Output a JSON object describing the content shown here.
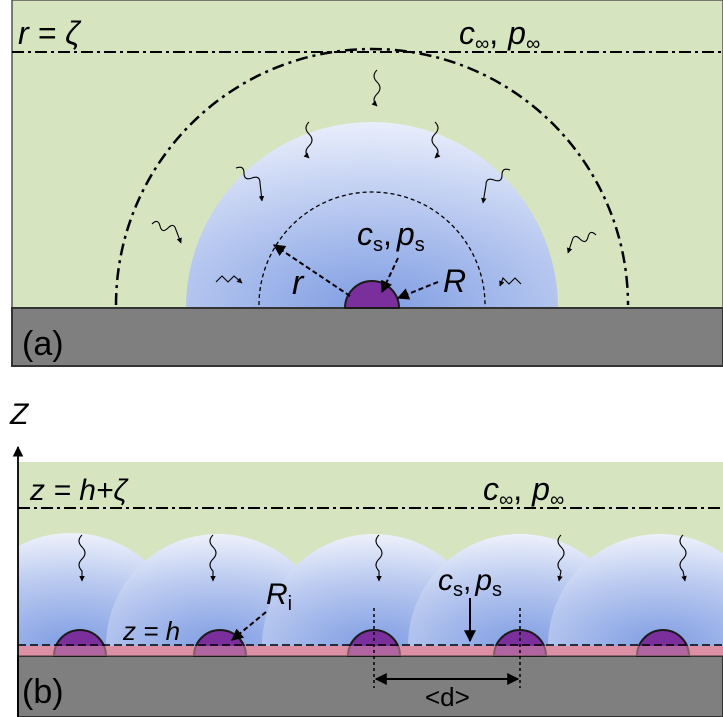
{
  "panel_a": {
    "label": "(a)",
    "boundary_label": "r = ζ",
    "far_field": {
      "c": "c",
      "c_sub": "∞",
      "sep": ",",
      "p": "p",
      "p_sub": "∞"
    },
    "surface": {
      "c": "c",
      "c_sub": "s",
      "sep": ",",
      "p": "p",
      "p_sub": "s"
    },
    "radius_r": "r",
    "radius_R": "R"
  },
  "panel_b": {
    "label": "(b)",
    "axis_label": "Z",
    "boundary_label": "z = h+ζ",
    "far_field": {
      "c": "c",
      "c_sub": "∞",
      "sep": ",",
      "p": "p",
      "p_sub": "∞"
    },
    "surface": {
      "c": "c",
      "c_sub": "s",
      "sep": ",",
      "p": "p",
      "p_sub": "s"
    },
    "radius_label": "R",
    "radius_sub": "i",
    "height_label": "z = h",
    "spacing_label": "<d>"
  },
  "colors": {
    "fluid": "#d6e4bf",
    "substrate": "#7f7f7f",
    "droplet": "#7a2f9c",
    "boundary_layer": "#dd8fa6",
    "diffusion_inner": "#7f9de3",
    "diffusion_outer": "#e9eefb"
  }
}
